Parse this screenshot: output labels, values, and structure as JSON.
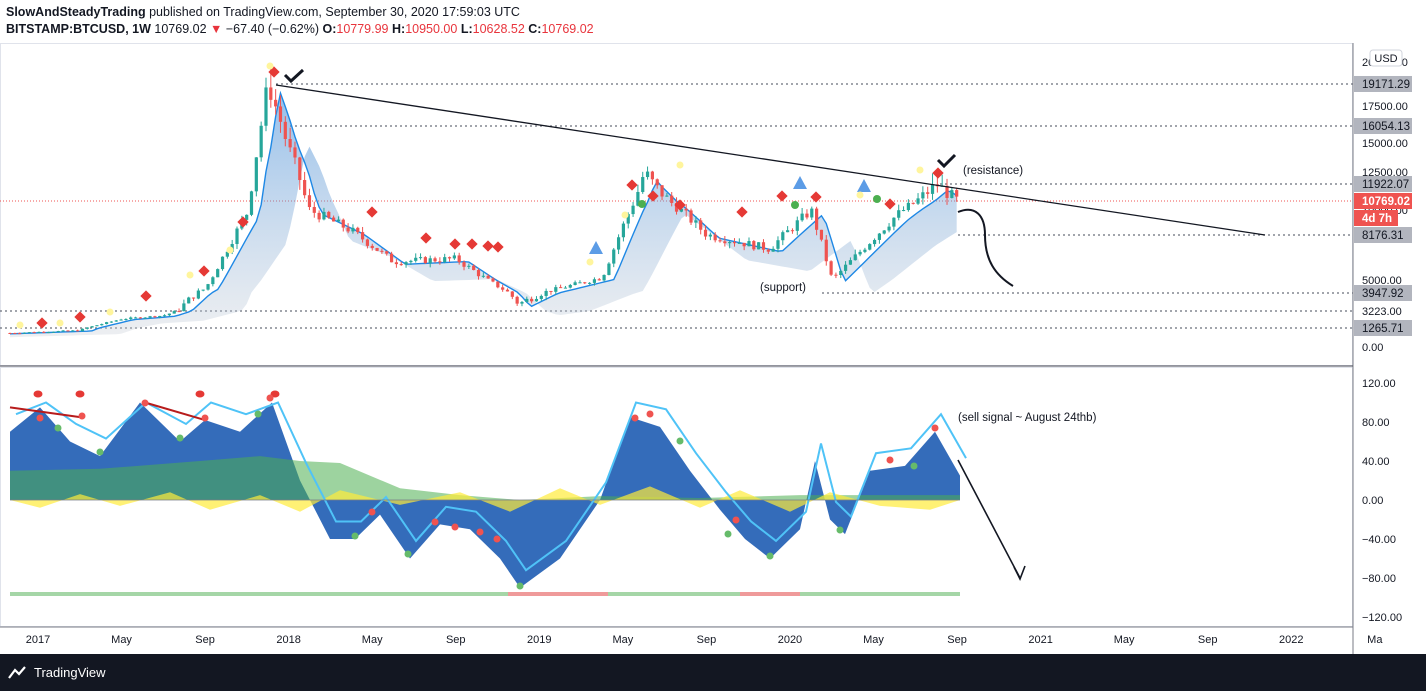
{
  "header": {
    "publisher": "SlowAndSteadyTrading",
    "published_text": "published on TradingView.com, September 30, 2020 17:59:03 UTC",
    "symbol": "BITSTAMP:BTCUSD, 1W",
    "last": "10769.02",
    "change": "−67.40 (−0.62%)",
    "o_label": "O:",
    "o": "10779.99",
    "h_label": "H:",
    "h": "10950.00",
    "l_label": "L:",
    "l": "10628.52",
    "c_label": "C:",
    "c": "10769.02"
  },
  "footer": {
    "brand": "TradingView"
  },
  "colors": {
    "up": "#26a69a",
    "down": "#ef5350",
    "line": "#131722",
    "osc_blue": "#1e5cb3",
    "osc_green": "#4caf50",
    "osc_yellow": "#ffeb3b"
  },
  "chart_data": [
    {
      "type": "candlestick",
      "currency": "USD",
      "x_ticks": [
        "2017",
        "May",
        "Sep",
        "2018",
        "May",
        "Sep",
        "2019",
        "May",
        "Sep",
        "2020",
        "May",
        "Sep",
        "2021",
        "May",
        "Sep",
        "2022",
        "Ma"
      ],
      "y_ticks": [
        "20000.00",
        "17500.00",
        "15000.00",
        "12500.00",
        "10000.00",
        "5000.00",
        "3223.00",
        "0.00"
      ],
      "price_labels": [
        {
          "value": "19171.29",
          "kind": "level"
        },
        {
          "value": "16054.13",
          "kind": "level"
        },
        {
          "value": "11922.07",
          "kind": "level"
        },
        {
          "value": "10769.02",
          "kind": "last"
        },
        {
          "value": "4d 7h",
          "kind": "countdown"
        },
        {
          "value": "8176.31",
          "kind": "level"
        },
        {
          "value": "3947.92",
          "kind": "level"
        },
        {
          "value": "1265.71",
          "kind": "level"
        }
      ],
      "annotations": [
        "(resistance)",
        "(support)"
      ],
      "weekly_close_approx": [
        {
          "date": "2017-01",
          "close": 1000
        },
        {
          "date": "2017-03",
          "close": 1100
        },
        {
          "date": "2017-05",
          "close": 2300
        },
        {
          "date": "2017-07",
          "close": 2700
        },
        {
          "date": "2017-09",
          "close": 4300
        },
        {
          "date": "2017-11",
          "close": 9800
        },
        {
          "date": "2017-12",
          "close": 19171
        },
        {
          "date": "2018-02",
          "close": 10000
        },
        {
          "date": "2018-04",
          "close": 8500
        },
        {
          "date": "2018-06",
          "close": 6300
        },
        {
          "date": "2018-09",
          "close": 6500
        },
        {
          "date": "2018-12",
          "close": 3500
        },
        {
          "date": "2019-04",
          "close": 5200
        },
        {
          "date": "2019-06",
          "close": 12500
        },
        {
          "date": "2019-09",
          "close": 8200
        },
        {
          "date": "2019-12",
          "close": 7200
        },
        {
          "date": "2020-02",
          "close": 10000
        },
        {
          "date": "2020-03",
          "close": 5000
        },
        {
          "date": "2020-06",
          "close": 9500
        },
        {
          "date": "2020-08",
          "close": 11900
        },
        {
          "date": "2020-09",
          "close": 10769
        }
      ]
    },
    {
      "type": "area",
      "annotation": "(sell signal ~ August 24thb)",
      "y_ticks": [
        "120.00",
        "80.00",
        "40.00",
        "0.00",
        "−40.00",
        "−80.00",
        "−120.00"
      ],
      "ylim": [
        -120,
        120
      ]
    }
  ]
}
